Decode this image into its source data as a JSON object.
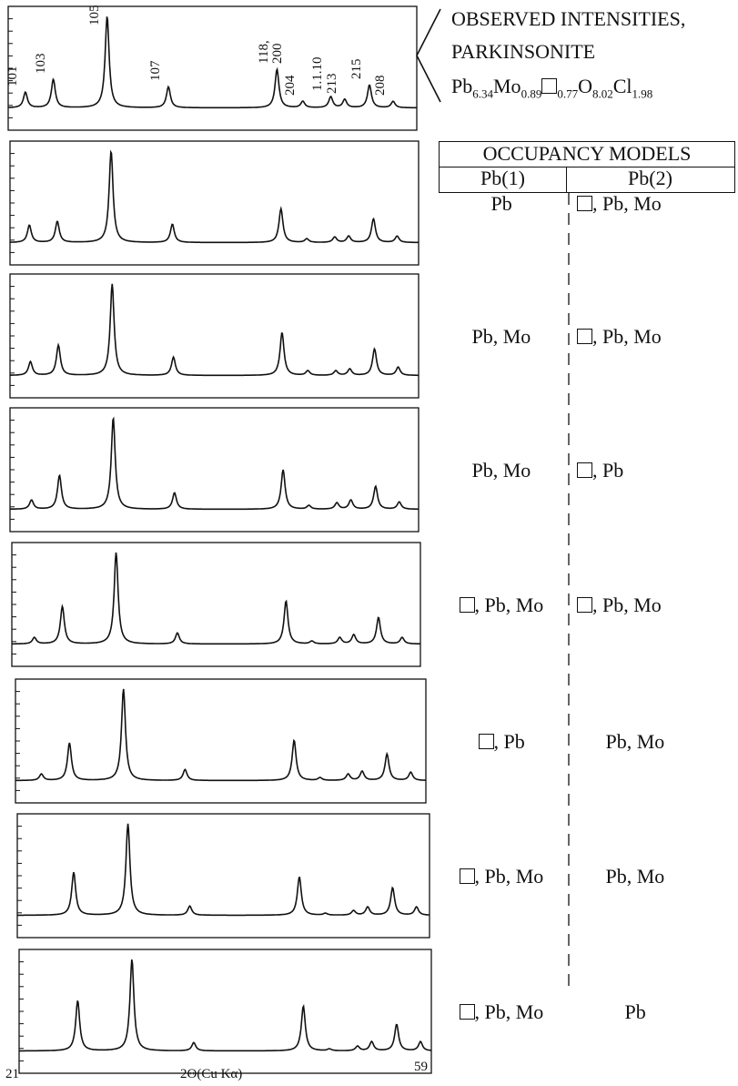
{
  "chart_data": {
    "type": "line",
    "x_range": [
      21,
      59
    ],
    "xlabel": "2Θ(Cu Kα)",
    "x_tick_labels": [
      "21",
      "59"
    ],
    "peaks": [
      {
        "label": "101",
        "x": 22.6
      },
      {
        "label": "103",
        "x": 25.2
      },
      {
        "label": "105",
        "x": 30.2
      },
      {
        "label": "107",
        "x": 35.9
      },
      {
        "label": "118, 200",
        "x": 46.0
      },
      {
        "label": "204",
        "x": 48.4
      },
      {
        "label": "1.1.10",
        "x": 51.0
      },
      {
        "label": "213",
        "x": 52.3
      },
      {
        "label": "215",
        "x": 54.6
      },
      {
        "label": "208",
        "x": 56.8
      }
    ],
    "panels": [
      {
        "pb1": "",
        "pb2": "",
        "shift": 0.0,
        "heights": [
          0.17,
          0.31,
          1.0,
          0.23,
          0.42,
          0.07,
          0.12,
          0.09,
          0.25,
          0.07
        ]
      },
      {
        "pb1": "Pb",
        "pb2": "□, Pb, Mo",
        "shift": 0.2,
        "heights": [
          0.19,
          0.23,
          1.0,
          0.2,
          0.37,
          0.04,
          0.06,
          0.07,
          0.26,
          0.07
        ]
      },
      {
        "pb1": "Pb, Mo",
        "pb2": "□, Pb, Mo",
        "shift": 0.3,
        "heights": [
          0.15,
          0.33,
          1.0,
          0.2,
          0.47,
          0.05,
          0.05,
          0.07,
          0.29,
          0.09
        ]
      },
      {
        "pb1": "Pb, Mo",
        "pb2": "□, Pb",
        "shift": 0.4,
        "heights": [
          0.1,
          0.37,
          1.0,
          0.18,
          0.43,
          0.04,
          0.07,
          0.1,
          0.25,
          0.08
        ]
      },
      {
        "pb1": "□, Pb, Mo",
        "pb2": "□, Pb, Mo",
        "shift": 0.5,
        "heights": [
          0.07,
          0.41,
          1.0,
          0.12,
          0.47,
          0.03,
          0.07,
          0.1,
          0.29,
          0.07
        ]
      },
      {
        "pb1": "□, Pb",
        "pb2": "Pb, Mo",
        "shift": 0.8,
        "heights": [
          0.07,
          0.41,
          1.0,
          0.12,
          0.44,
          0.03,
          0.07,
          0.1,
          0.29,
          0.09
        ]
      },
      {
        "pb1": "□, Pb, Mo",
        "pb2": "Pb, Mo",
        "shift": 1.0,
        "heights": [
          0.0,
          0.47,
          1.0,
          0.1,
          0.42,
          0.02,
          0.05,
          0.09,
          0.3,
          0.09
        ]
      },
      {
        "pb1": "□, Pb, Mo",
        "pb2": "Pb",
        "shift": 1.2,
        "heights": [
          0.0,
          0.55,
          1.0,
          0.09,
          0.49,
          0.02,
          0.05,
          0.1,
          0.29,
          0.1
        ]
      }
    ]
  },
  "legend": {
    "line1": "OBSERVED INTENSITIES,",
    "line2": "PARKINSONITE",
    "formula": [
      {
        "t": "Pb"
      },
      {
        "s": "6.34"
      },
      {
        "t": "Mo"
      },
      {
        "s": "0.89"
      },
      {
        "box": true
      },
      {
        "s": "0.77"
      },
      {
        "t": "O"
      },
      {
        "s": "8.02"
      },
      {
        "t": "Cl"
      },
      {
        "s": "1.98"
      }
    ]
  },
  "table": {
    "title": "OCCUPANCY MODELS",
    "col1": "Pb(1)",
    "col2": "Pb(2)"
  }
}
